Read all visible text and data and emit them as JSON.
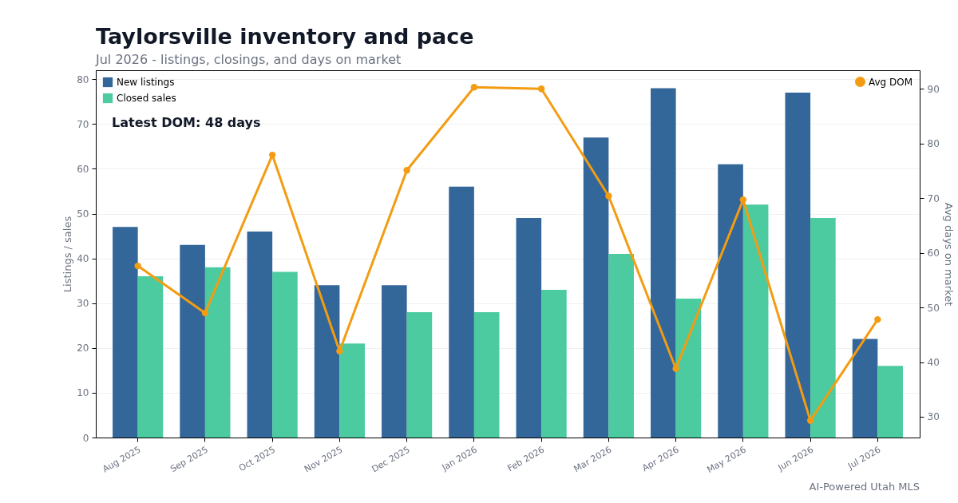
{
  "chart_data": {
    "type": "bar",
    "title": "Taylorsville inventory and pace",
    "subtitle": "Jul 2026 - listings, closings, and days on market",
    "ylabel": "Listings / sales",
    "y2label": "Avg days on market",
    "categories": [
      "Aug 2025",
      "Sep 2025",
      "Oct 2025",
      "Nov 2025",
      "Dec 2025",
      "Jan 2026",
      "Feb 2026",
      "Mar 2026",
      "Apr 2026",
      "May 2026",
      "Jun 2026",
      "Jul 2026"
    ],
    "series": [
      {
        "name": "New listings",
        "color": "#336699",
        "values": [
          47,
          43,
          46,
          34,
          34,
          56,
          49,
          67,
          78,
          61,
          77,
          22
        ]
      },
      {
        "name": "Closed sales",
        "color": "#4bcb9f",
        "values": [
          36,
          38,
          37,
          21,
          28,
          28,
          33,
          41,
          31,
          52,
          49,
          16
        ]
      },
      {
        "name": "Avg DOM",
        "type": "line",
        "axis": "y2",
        "color": "#f39c12",
        "values": [
          57.6,
          49,
          77.9,
          42,
          75.1,
          90.3,
          90,
          70.4,
          38.8,
          69.7,
          29.3,
          47.8
        ]
      }
    ],
    "ylim": [
      0,
      82
    ],
    "yticks": [
      0,
      10,
      20,
      30,
      40,
      50,
      60,
      70,
      80
    ],
    "y2lim": [
      26.2,
      93.4
    ],
    "y2ticks": [
      30,
      40,
      50,
      60,
      70,
      80,
      90
    ],
    "grid": "y",
    "legend": "top left",
    "marker": "circle",
    "line_style": "solid",
    "annotations": [
      "Latest DOM: 48 days",
      "AI-Powered Utah MLS"
    ]
  }
}
